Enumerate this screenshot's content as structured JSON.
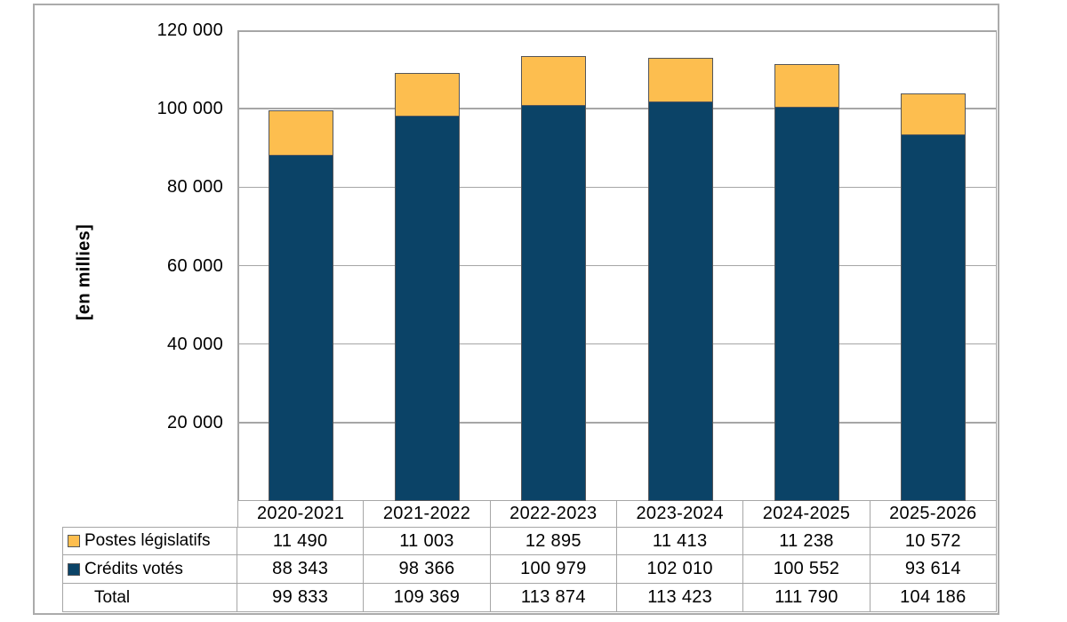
{
  "chart_data": {
    "type": "bar",
    "stacked": true,
    "ylabel": "[en millies]",
    "categories": [
      "2020-2021",
      "2021-2022",
      "2022-2023",
      "2023-2024",
      "2024-2025",
      "2025-2026"
    ],
    "series": [
      {
        "name": "Postes législatifs",
        "color": "#fdbe4f",
        "values": [
          11490,
          11003,
          12895,
          11413,
          11238,
          10572
        ],
        "labels": [
          "11 490",
          "11 003",
          "12 895",
          "11 413",
          "11 238",
          "10 572"
        ]
      },
      {
        "name": "Crédits votés",
        "color": "#0b4367",
        "values": [
          88343,
          98366,
          100979,
          102010,
          100552,
          93614
        ],
        "labels": [
          "88 343",
          "98 366",
          "100 979",
          "102 010",
          "100 552",
          "93 614"
        ]
      }
    ],
    "stack_order_bottom_to_top": [
      "Crédits votés",
      "Postes législatifs"
    ],
    "total_row": {
      "name": "Total",
      "values": [
        99833,
        109369,
        113874,
        113423,
        111790,
        104186
      ],
      "labels": [
        "99 833",
        "109 369",
        "113 874",
        "113 423",
        "111 790",
        "104 186"
      ]
    },
    "ylim": [
      0,
      120000
    ],
    "ytick_step": 20000,
    "yticks": [
      {
        "value": 120000,
        "label": "120 000"
      },
      {
        "value": 100000,
        "label": "100 000"
      },
      {
        "value": 80000,
        "label": "80 000"
      },
      {
        "value": 60000,
        "label": "60 000"
      },
      {
        "value": 40000,
        "label": "40 000"
      },
      {
        "value": 20000,
        "label": "20 000"
      }
    ],
    "grid": "horizontal",
    "legend_position": "table-left"
  },
  "colors": {
    "postes_legislatifs": "#fdbe4f",
    "credits_votes": "#0b4367",
    "bar_border": "#54565a",
    "grid_line": "#a6a6a6",
    "frame_border": "#ababab",
    "text": "#000000",
    "background": "#ffffff"
  }
}
